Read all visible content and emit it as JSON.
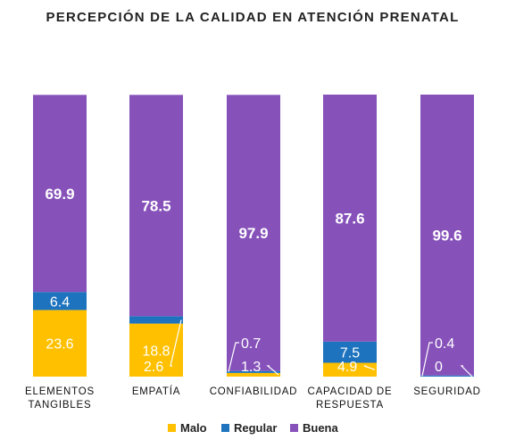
{
  "chart_data": {
    "type": "bar",
    "stacked": true,
    "title": "PERCEPCIÓN DE LA CALIDAD EN ATENCIÓN PRENATAL",
    "categories": [
      [
        "ELEMENTOS",
        "TANGIBLES"
      ],
      [
        "EMPATÍA"
      ],
      [
        "CONFIABILIDAD"
      ],
      [
        "CAPACIDAD DE",
        "RESPUESTA"
      ],
      [
        "SEGURIDAD"
      ]
    ],
    "series": [
      {
        "name": "Malo",
        "color": "#FFC000",
        "values": [
          23.6,
          18.8,
          1.3,
          4.9,
          0
        ]
      },
      {
        "name": "Regular",
        "color": "#1E73BE",
        "values": [
          6.4,
          2.6,
          0.7,
          7.5,
          0.4
        ]
      },
      {
        "name": "Buena",
        "color": "#8652BA",
        "values": [
          69.9,
          78.5,
          97.9,
          87.6,
          99.6
        ]
      }
    ],
    "value_labels": [
      [
        "23.6",
        "6.4",
        "69.9"
      ],
      [
        "18.8",
        "2.6",
        "78.5"
      ],
      [
        "1.3",
        "0.7",
        "97.9"
      ],
      [
        "4.9",
        "7.5",
        "87.6"
      ],
      [
        "0",
        "0.4",
        "99.6"
      ]
    ],
    "ylim": [
      0,
      100
    ],
    "legend": "bottom",
    "grid": false
  }
}
